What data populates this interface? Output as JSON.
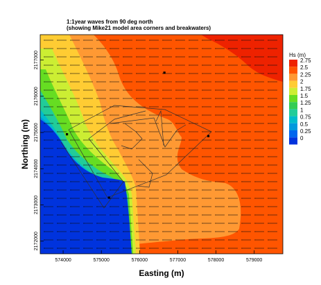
{
  "title_line1": "1:1year waves from 90 deg north",
  "title_line2": "(showing Mike21 model area corners and breakwaters)",
  "chart_data": {
    "type": "heatmap",
    "title": "1:1year waves from 90 deg north (showing Mike21 model area corners and breakwaters)",
    "xlabel": "Easting (m)",
    "ylabel": "Northing (m)",
    "xlim": [
      573400,
      579750
    ],
    "ylim": [
      2171650,
      2177700
    ],
    "x_ticks": [
      "574000",
      "575000",
      "576000",
      "577000",
      "578000",
      "579000"
    ],
    "x_tick_values": [
      574000,
      575000,
      576000,
      577000,
      578000,
      579000
    ],
    "y_ticks": [
      "2172000",
      "2173000",
      "2174000",
      "2175000",
      "2176000",
      "2177000"
    ],
    "y_tick_values": [
      2172000,
      2173000,
      2174000,
      2175000,
      2176000,
      2177000
    ],
    "grid": false,
    "colorbar": {
      "title": "Hs (m)",
      "levels": [
        "2.75",
        "2.5",
        "2.25",
        "2",
        "1.75",
        "1.5",
        "1.25",
        "1",
        "0.75",
        "0.5",
        "0.25",
        "0"
      ],
      "colors": [
        "#ee2200",
        "#ff5500",
        "#ff9933",
        "#ffcc33",
        "#ccee33",
        "#66dd22",
        "#33cc55",
        "#22cc99",
        "#00bbcc",
        "#0099dd",
        "#0066ee",
        "#0033dd"
      ]
    },
    "wave_direction_deg": 90,
    "vector_description": "uniform wave direction arrows pointing west",
    "zones_hs": [
      {
        "region": "north-east corner",
        "hs": 2.75
      },
      {
        "region": "open sea (east & central)",
        "hs": 2.5
      },
      {
        "region": "nearshore sheltered band",
        "hs": 2.25
      },
      {
        "region": "western coast transition",
        "hs": [
          0.5,
          2.0
        ]
      },
      {
        "region": "south-west sheltered basin",
        "hs": 0
      }
    ],
    "markers": [
      {
        "x": 574100,
        "y": 2174950
      },
      {
        "x": 576650,
        "y": 2176650
      },
      {
        "x": 577800,
        "y": 2174900
      },
      {
        "x": 575200,
        "y": 2173200
      }
    ]
  }
}
